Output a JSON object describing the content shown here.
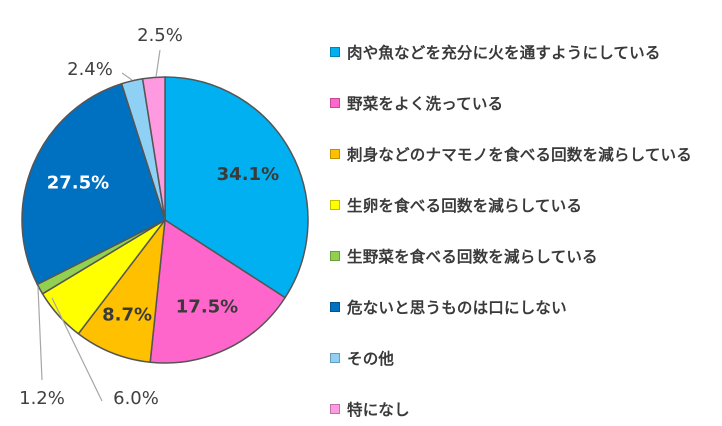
{
  "chart_data": {
    "type": "pie",
    "start_angle_deg": 0,
    "direction": "clockwise",
    "legend_position": "right",
    "slices": [
      {
        "label": "肉や魚などを充分に火を通すようにしている",
        "value": 34.1,
        "value_label": "34.1%",
        "color": "#00b0f0"
      },
      {
        "label": "野菜をよく洗っている",
        "value": 17.5,
        "value_label": "17.5%",
        "color": "#ff66cc"
      },
      {
        "label": "刺身などのナマモノを食べる回数を減らしている",
        "value": 8.7,
        "value_label": "8.7%",
        "color": "#ffc000"
      },
      {
        "label": "生卵を食べる回数を減らしている",
        "value": 6.0,
        "value_label": "6.0%",
        "color": "#ffff00"
      },
      {
        "label": "生野菜を食べる回数を減らしている",
        "value": 1.2,
        "value_label": "1.2%",
        "color": "#92d050"
      },
      {
        "label": "危ないと思うものは口にしない",
        "value": 27.5,
        "value_label": "27.5%",
        "color": "#0070c0"
      },
      {
        "label": "その他",
        "value": 2.4,
        "value_label": "2.4%",
        "color": "#8fd1f5"
      },
      {
        "label": "特になし",
        "value": 2.5,
        "value_label": "2.5%",
        "color": "#ff99e0"
      }
    ]
  }
}
